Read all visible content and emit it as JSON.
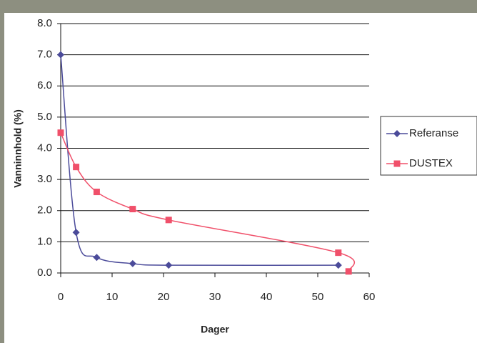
{
  "chart_data": {
    "type": "line",
    "x_label": "Dager",
    "y_label": "Vanninnhold (%)",
    "series": [
      {
        "name": "Referanse",
        "color": "#4b4b9a",
        "marker": "diamond",
        "x": [
          0,
          3,
          7,
          14,
          21,
          54
        ],
        "values": [
          7.0,
          1.3,
          0.5,
          0.3,
          0.25,
          0.25
        ]
      },
      {
        "name": "DUSTEX",
        "color": "#f0506a",
        "marker": "square",
        "x": [
          0,
          3,
          7,
          14,
          21,
          54,
          56
        ],
        "values": [
          4.5,
          3.4,
          2.6,
          2.05,
          1.7,
          0.65,
          0.05
        ]
      }
    ],
    "xlim": [
      0,
      60
    ],
    "xticks": [
      0,
      10,
      20,
      30,
      40,
      50,
      60
    ],
    "ylim": [
      0,
      8
    ],
    "yticks": [
      {
        "value": 0,
        "label": "0.0"
      },
      {
        "value": 1,
        "label": "1.0"
      },
      {
        "value": 2,
        "label": "2.0"
      },
      {
        "value": 3,
        "label": "3.0"
      },
      {
        "value": 4,
        "label": "4.0"
      },
      {
        "value": 5,
        "label": "5.0"
      },
      {
        "value": 6,
        "label": "6.0"
      },
      {
        "value": 7,
        "label": "7.0"
      },
      {
        "value": 8,
        "label": "8.0"
      }
    ],
    "grid": true,
    "smooth": true,
    "legend": "right"
  }
}
